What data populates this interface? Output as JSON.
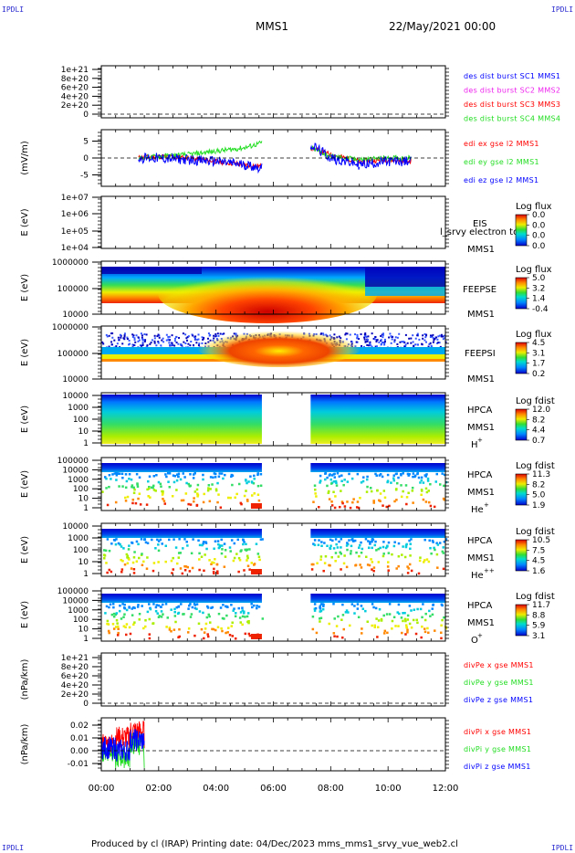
{
  "header": {
    "corner_label": "IPDLI",
    "title": "MMS1",
    "date": "22/May/2021 00:00"
  },
  "footer": {
    "text": "Produced by cl (IRAP)   Printing date: 04/Dec/2023   mms_mms1_srvy_vue_web2.cl"
  },
  "x_axis": {
    "ticks": [
      "00:00",
      "02:00",
      "04:00",
      "06:00",
      "08:00",
      "10:00",
      "12:00"
    ],
    "range_hours": [
      0,
      12
    ]
  },
  "colors": {
    "red": "#ff0000",
    "green": "#22dd22",
    "blue": "#0000ff",
    "magenta": "#ee22ee",
    "dark_blue": "#000099"
  },
  "panels": {
    "p1": {
      "yticks": [
        "1e+21",
        "8e+20",
        "6e+20",
        "4e+20",
        "2e+20",
        "0"
      ],
      "legend": [
        "des dist burst SC1 MMS1",
        "des dist burst SC2 MMS2",
        "des dist burst SC3 MMS3",
        "des dist burst SC4 MMS4"
      ]
    },
    "p2": {
      "ylabel": "(mV/m)",
      "yticks": [
        "5",
        "0",
        "-5"
      ],
      "legend": [
        "edi ex gse l2 MMS1",
        "edi ey gse l2 MMS1",
        "edi ez gse l2 MMS1"
      ]
    },
    "p3": {
      "ylabel": "E (eV)",
      "yticks": [
        "1e+07",
        "1e+06",
        "1e+05",
        "1e+04"
      ],
      "name": "EIS",
      "sub": "MMS1",
      "overlap": "l_srvy electron to",
      "cbar_title": "Log flux",
      "cbar": [
        "0.0",
        "0.0",
        "0.0",
        "0.0"
      ]
    },
    "p4": {
      "ylabel": "E (eV)",
      "yticks": [
        "1000000",
        "100000",
        "10000"
      ],
      "name": "FEEPSE",
      "sub": "MMS1",
      "cbar_title": "Log flux",
      "cbar": [
        "5.0",
        "3.2",
        "1.4",
        "-0.4"
      ]
    },
    "p5": {
      "ylabel": "E (eV)",
      "yticks": [
        "1000000",
        "100000",
        "10000"
      ],
      "name": "FEEPSI",
      "sub": "MMS1",
      "cbar_title": "Log flux",
      "cbar": [
        "4.5",
        "3.1",
        "1.7",
        "0.2"
      ]
    },
    "p6": {
      "ylabel": "E (eV)",
      "yticks": [
        "10000",
        "1000",
        "100",
        "10",
        "1"
      ],
      "name": "HPCA",
      "sub": "MMS1",
      "ion": "H",
      "charge": "+",
      "cbar_title": "Log fdist",
      "cbar": [
        "12.0",
        "8.2",
        "4.4",
        "0.7"
      ]
    },
    "p7": {
      "ylabel": "E (eV)",
      "yticks": [
        "100000",
        "10000",
        "1000",
        "100",
        "10",
        "1"
      ],
      "name": "HPCA",
      "sub": "MMS1",
      "ion": "He",
      "charge": "+",
      "cbar_title": "Log fdist",
      "cbar": [
        "11.3",
        "8.2",
        "5.0",
        "1.9"
      ]
    },
    "p8": {
      "ylabel": "E (eV)",
      "yticks": [
        "10000",
        "1000",
        "100",
        "10",
        "1"
      ],
      "name": "HPCA",
      "sub": "MMS1",
      "ion": "He",
      "charge": "++",
      "cbar_title": "Log fdist",
      "cbar": [
        "10.5",
        "7.5",
        "4.5",
        "1.6"
      ]
    },
    "p9": {
      "ylabel": "E (eV)",
      "yticks": [
        "100000",
        "10000",
        "1000",
        "100",
        "10",
        "1"
      ],
      "name": "HPCA",
      "sub": "MMS1",
      "ion": "O",
      "charge": "+",
      "cbar_title": "Log fdist",
      "cbar": [
        "11.7",
        "8.8",
        "5.9",
        "3.1"
      ]
    },
    "p10": {
      "ylabel": "(nPa/km)",
      "yticks": [
        "1e+21",
        "8e+20",
        "6e+20",
        "4e+20",
        "2e+20",
        "0"
      ],
      "legend": [
        "divPe x gse MMS1",
        "divPe y gse MMS1",
        "divPe z gse MMS1"
      ]
    },
    "p11": {
      "ylabel": "(nPa/km)",
      "yticks": [
        "0.02",
        "0.01",
        "0.00",
        "-0.01"
      ],
      "legend": [
        "divPi x gse MMS1",
        "divPi y gse MMS1",
        "divPi z gse MMS1"
      ]
    }
  },
  "chart_data": [
    {
      "type": "line",
      "title": "des dist burst",
      "ylim": [
        0,
        1e+21
      ],
      "series": []
    },
    {
      "type": "line",
      "ylabel": "(mV/m)",
      "ylim": [
        -7,
        7
      ],
      "xlim": [
        0,
        12
      ],
      "series": [
        {
          "name": "edi ex gse l2 MMS1",
          "x": [
            1.3,
            2,
            3,
            4,
            5,
            5.6,
            7.3,
            8,
            9,
            10,
            10.8
          ],
          "y": [
            0,
            0.5,
            0,
            -1,
            -2,
            -2.5,
            3,
            1,
            -1,
            -0.5,
            -1
          ]
        },
        {
          "name": "edi ey gse l2 MMS1",
          "x": [
            1.3,
            2,
            3,
            4,
            5,
            5.6,
            7.3,
            8,
            9,
            10,
            10.8
          ],
          "y": [
            0,
            0.5,
            1,
            2,
            3,
            4.5,
            3,
            0.5,
            -0.5,
            0,
            0
          ]
        },
        {
          "name": "edi ez gse l2 MMS1",
          "x": [
            1.3,
            2,
            3,
            4,
            5,
            5.6,
            7.3,
            8,
            9,
            10,
            10.8
          ],
          "y": [
            0,
            0,
            -0.5,
            -1,
            -2,
            -3,
            4,
            0,
            -2,
            -1,
            -1
          ]
        }
      ]
    },
    {
      "type": "heatmap",
      "name": "EIS",
      "ylabel": "E (eV)",
      "ylim": [
        10000.0,
        10000000.0
      ]
    },
    {
      "type": "heatmap",
      "name": "FEEPSE",
      "ylabel": "E (eV)",
      "ylim": [
        10000.0,
        1000000.0
      ]
    },
    {
      "type": "heatmap",
      "name": "FEEPSI",
      "ylabel": "E (eV)",
      "ylim": [
        10000.0,
        1000000.0
      ]
    },
    {
      "type": "heatmap",
      "name": "HPCA H+",
      "ylabel": "E (eV)",
      "gap_hours": [
        5.6,
        7.3
      ]
    },
    {
      "type": "heatmap",
      "name": "HPCA He+",
      "ylabel": "E (eV)",
      "gap_hours": [
        5.6,
        7.3
      ]
    },
    {
      "type": "heatmap",
      "name": "HPCA He++",
      "ylabel": "E (eV)",
      "gap_hours": [
        5.6,
        7.3
      ]
    },
    {
      "type": "heatmap",
      "name": "HPCA O+",
      "ylabel": "E (eV)",
      "gap_hours": [
        5.6,
        7.3
      ]
    },
    {
      "type": "line",
      "ylabel": "(nPa/km)",
      "ylim": [
        0,
        1e+21
      ],
      "series": []
    },
    {
      "type": "line",
      "ylabel": "(nPa/km)",
      "ylim": [
        -0.015,
        0.025
      ],
      "xlim": [
        0,
        12
      ],
      "series": [
        {
          "name": "divPi x gse MMS1",
          "x": [
            0,
            0.5,
            1,
            1.5
          ],
          "y": [
            0.005,
            0.01,
            0.015,
            0.01
          ]
        },
        {
          "name": "divPi y gse MMS1",
          "x": [
            0,
            0.5,
            1,
            1.5
          ],
          "y": [
            0.0,
            -0.005,
            0.005,
            -0.005
          ]
        },
        {
          "name": "divPi z gse MMS1",
          "x": [
            0,
            0.5,
            1,
            1.5
          ],
          "y": [
            0.002,
            0.0,
            0.008,
            0.0
          ]
        }
      ]
    }
  ]
}
